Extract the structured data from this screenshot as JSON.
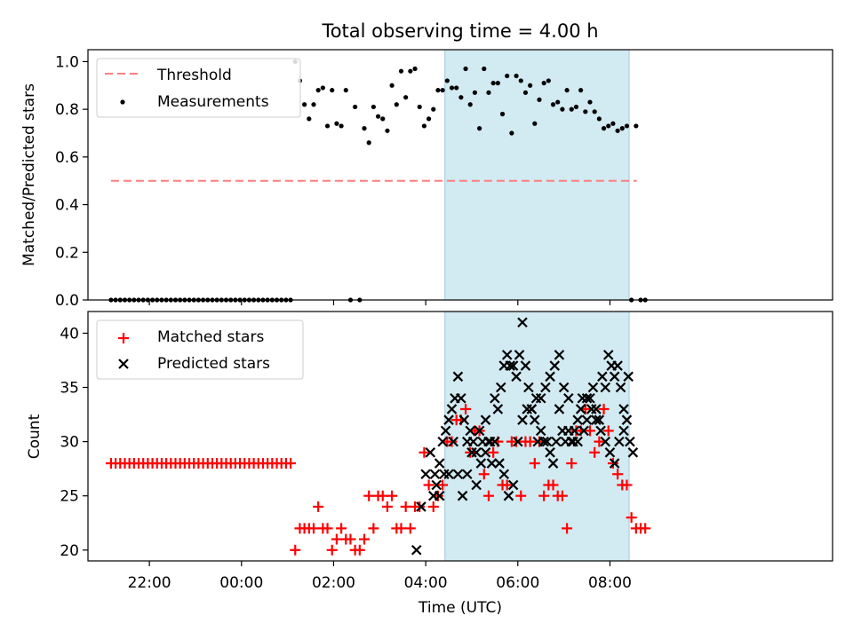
{
  "chart_data": [
    {
      "type": "scatter",
      "title": "Total observing time = 4.00 h",
      "xlabel": "",
      "ylabel": "Matched/Predicted stars",
      "xlim": [
        -200,
        770
      ],
      "ylim": [
        0,
        1.05
      ],
      "yticks": [
        0,
        0.2,
        0.4,
        0.6,
        0.8,
        1.0
      ],
      "ytick_labels": [
        "0.0",
        "0.2",
        "0.4",
        "0.6",
        "0.8",
        "1.0"
      ],
      "shaded_span_x": [
        265,
        505
      ],
      "legend_position": "upper-left",
      "threshold": {
        "name": "Threshold",
        "value": 0.5,
        "x_range": [
          -170,
          515
        ],
        "color": "#ff7f7f",
        "style": "dashed"
      },
      "series": [
        {
          "name": "Measurements",
          "marker": "dot",
          "color": "#000000",
          "x": [
            -170,
            -164,
            -158,
            -152,
            -146,
            -140,
            -134,
            -128,
            -122,
            -116,
            -110,
            -104,
            -98,
            -92,
            -86,
            -80,
            -74,
            -68,
            -62,
            -56,
            -50,
            -44,
            -38,
            -32,
            -26,
            -20,
            -14,
            -8,
            -2,
            4,
            10,
            16,
            22,
            28,
            34,
            40,
            46,
            52,
            58,
            64,
            70,
            76,
            82,
            88,
            94,
            100,
            106,
            112,
            118,
            124,
            130,
            136,
            142,
            148,
            154,
            160,
            166,
            172,
            178,
            184,
            190,
            196,
            202,
            208,
            214,
            220,
            226,
            232,
            238,
            244,
            250,
            256,
            262,
            268,
            274,
            280,
            286,
            292,
            298,
            304,
            310,
            316,
            322,
            328,
            334,
            340,
            346,
            352,
            358,
            364,
            370,
            376,
            382,
            388,
            394,
            400,
            406,
            412,
            418,
            424,
            430,
            436,
            442,
            448,
            454,
            460,
            466,
            472,
            478,
            484,
            490,
            496,
            502,
            508,
            514,
            520,
            526
          ],
          "y": [
            0,
            0,
            0,
            0,
            0,
            0,
            0,
            0,
            0,
            0,
            0,
            0,
            0,
            0,
            0,
            0,
            0,
            0,
            0,
            0,
            0,
            0,
            0,
            0,
            0,
            0,
            0,
            0,
            0,
            0,
            0,
            0,
            0,
            0,
            0,
            0,
            0,
            0,
            0,
            0,
            1.0,
            0.92,
            0.82,
            0.76,
            0.82,
            0.88,
            0.89,
            0.73,
            0.88,
            0.74,
            0.73,
            0.88,
            0,
            0.81,
            0,
            0.72,
            0.66,
            0.81,
            0.77,
            0.76,
            0.71,
            0.9,
            0.82,
            0.96,
            0.85,
            0.96,
            0.97,
            0.81,
            0.73,
            0.76,
            0.8,
            0.88,
            0.88,
            0.92,
            0.89,
            0.89,
            0.85,
            0.97,
            0.82,
            0.87,
            0.72,
            0.97,
            0.87,
            0.91,
            0.91,
            0.78,
            0.94,
            0.7,
            0.94,
            0.92,
            0.87,
            0.9,
            0.74,
            0.84,
            0.91,
            0.92,
            0.82,
            0.83,
            0.8,
            0.88,
            0.8,
            0.81,
            0.88,
            0.79,
            0.83,
            0.79,
            0.76,
            0.72,
            0.73,
            0.74,
            0.71,
            0.72,
            0.73,
            0,
            0.73,
            0,
            0
          ],
          "note_visible": ""
        }
      ]
    },
    {
      "type": "scatter",
      "title": "",
      "xlabel": "Time (UTC)",
      "ylabel": "Count",
      "xlim": [
        -200,
        770
      ],
      "ylim": [
        19,
        42
      ],
      "yticks": [
        20,
        25,
        30,
        35,
        40
      ],
      "ytick_labels": [
        "20",
        "25",
        "30",
        "35",
        "40"
      ],
      "xticks": [
        -120,
        0,
        120,
        240,
        360,
        480
      ],
      "xtick_labels": [
        "22:00",
        "00:00",
        "02:00",
        "04:00",
        "06:00",
        "08:00"
      ],
      "shaded_span_x": [
        265,
        505
      ],
      "legend_position": "upper-left",
      "series": [
        {
          "name": "Matched stars",
          "marker": "plus",
          "color": "#ff0000",
          "x": [
            -170,
            -164,
            -158,
            -152,
            -146,
            -140,
            -134,
            -128,
            -122,
            -116,
            -110,
            -104,
            -98,
            -92,
            -86,
            -80,
            -74,
            -68,
            -62,
            -56,
            -50,
            -44,
            -38,
            -32,
            -26,
            -20,
            -14,
            -8,
            -2,
            4,
            10,
            16,
            22,
            28,
            34,
            40,
            46,
            52,
            58,
            64,
            70,
            76,
            82,
            88,
            94,
            100,
            106,
            112,
            118,
            124,
            130,
            136,
            142,
            148,
            154,
            160,
            166,
            172,
            178,
            184,
            190,
            196,
            202,
            208,
            214,
            220,
            226,
            232,
            238,
            244,
            250,
            256,
            262,
            268,
            274,
            280,
            286,
            292,
            298,
            304,
            310,
            316,
            322,
            328,
            334,
            340,
            346,
            352,
            358,
            364,
            370,
            376,
            382,
            388,
            394,
            400,
            406,
            412,
            418,
            424,
            430,
            436,
            442,
            448,
            454,
            460,
            466,
            472,
            478,
            484,
            490,
            496,
            502,
            508,
            514,
            520,
            526
          ],
          "y": [
            28,
            28,
            28,
            28,
            28,
            28,
            28,
            28,
            28,
            28,
            28,
            28,
            28,
            28,
            28,
            28,
            28,
            28,
            28,
            28,
            28,
            28,
            28,
            28,
            28,
            28,
            28,
            28,
            28,
            28,
            28,
            28,
            28,
            28,
            28,
            28,
            28,
            28,
            28,
            28,
            20,
            22,
            22,
            22,
            22,
            24,
            22,
            22,
            20,
            21,
            22,
            21,
            21,
            20,
            20,
            21,
            25,
            22,
            25,
            25,
            24,
            25,
            22,
            22,
            24,
            22,
            24,
            24,
            29,
            26,
            24,
            25,
            26,
            30,
            30,
            32,
            32,
            33,
            29,
            31,
            31,
            27,
            25,
            29,
            30,
            26,
            26,
            30,
            30,
            25,
            30,
            30,
            28,
            30,
            25,
            26,
            26,
            25,
            25,
            22,
            28,
            31,
            31,
            33,
            31,
            29,
            30,
            33,
            31,
            28,
            27,
            26,
            26,
            23,
            22,
            22,
            22
          ],
          "note_visible": ""
        },
        {
          "name": "Predicted stars",
          "marker": "x",
          "color": "#000000",
          "x": [
            228,
            234,
            240,
            246,
            252,
            258,
            264,
            270,
            276,
            282,
            288,
            294,
            300,
            306,
            312,
            318,
            324,
            330,
            336,
            342,
            348,
            354,
            360,
            366,
            372,
            378,
            384,
            390,
            396,
            402,
            408,
            414,
            420,
            426,
            432,
            438,
            444,
            450,
            456,
            462,
            468,
            474,
            480,
            486,
            492,
            498,
            504,
            510
          ],
          "y": [
            20,
            24,
            27,
            29,
            27,
            25,
            27,
            27,
            30,
            27,
            25,
            27,
            29,
            26,
            28,
            32,
            30,
            34,
            28,
            27,
            25,
            26,
            30,
            32,
            33,
            33,
            34,
            34,
            35,
            36,
            37,
            38,
            35,
            34,
            30,
            30,
            34,
            34,
            33,
            32,
            31,
            30,
            29,
            28,
            30,
            31,
            36,
            29
          ],
          "x2": [
            250,
            254,
            258,
            262,
            266,
            270,
            274,
            278,
            282,
            286,
            290,
            294,
            298,
            302,
            306,
            310,
            314,
            318,
            322,
            326,
            330,
            334,
            338,
            342,
            346,
            350,
            354,
            358,
            362,
            366,
            370,
            374,
            378,
            382,
            386,
            390,
            394,
            398,
            402,
            406,
            410,
            414,
            418,
            422,
            426,
            430,
            434,
            438,
            442,
            446,
            450,
            454,
            458,
            462,
            466,
            470,
            474,
            478,
            482,
            486,
            490,
            494,
            498,
            502,
            506
          ],
          "y2": [
            25,
            26,
            28,
            30,
            31,
            32,
            33,
            34,
            36,
            34,
            32,
            30,
            31,
            30,
            29,
            31,
            30,
            29,
            30,
            28,
            30,
            33,
            35,
            37,
            38,
            37,
            37,
            36,
            38,
            41,
            37,
            35,
            33,
            32,
            30,
            31,
            30,
            30,
            29,
            28,
            30,
            33,
            31,
            30,
            31,
            30,
            31,
            32,
            33,
            31,
            32,
            34,
            35,
            33,
            32,
            36,
            35,
            38,
            37,
            36,
            37,
            35,
            33,
            32,
            30
          ],
          "note_visible": ""
        }
      ]
    }
  ]
}
